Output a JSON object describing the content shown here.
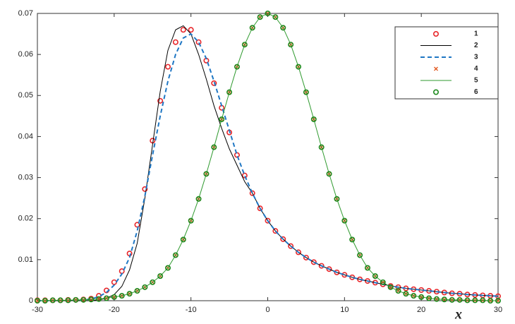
{
  "chart_data": {
    "type": "line",
    "x": [
      -30,
      -29,
      -28,
      -27,
      -26,
      -25,
      -24,
      -23,
      -22,
      -21,
      -20,
      -19,
      -18,
      -17,
      -16,
      -15,
      -14,
      -13,
      -12,
      -11,
      -10,
      -9,
      -8,
      -7,
      -6,
      -5,
      -4,
      -3,
      -2,
      -1,
      0,
      1,
      2,
      3,
      4,
      5,
      6,
      7,
      8,
      9,
      10,
      11,
      12,
      13,
      14,
      15,
      16,
      17,
      18,
      19,
      20,
      21,
      22,
      23,
      24,
      25,
      26,
      27,
      28,
      29,
      30
    ],
    "xlim": [
      -30,
      30
    ],
    "xticks": [
      -30,
      -20,
      -10,
      0,
      10,
      20,
      30
    ],
    "ylim": [
      0,
      0.07
    ],
    "yticks": [
      0,
      0.01,
      0.02,
      0.03,
      0.04,
      0.05,
      0.06,
      0.07
    ],
    "xlabel": "x",
    "legend": "upper right",
    "series": [
      {
        "name": "1",
        "color": "#e8262a",
        "marker": "o",
        "line": "none",
        "values": [
          0.0001,
          0.0001,
          0.0001,
          0.0001,
          0.0002,
          0.0002,
          0.0003,
          0.0005,
          0.0012,
          0.0025,
          0.0045,
          0.0072,
          0.0115,
          0.0185,
          0.0272,
          0.039,
          0.0487,
          0.057,
          0.063,
          0.066,
          0.066,
          0.063,
          0.0585,
          0.053,
          0.047,
          0.041,
          0.0355,
          0.0305,
          0.0262,
          0.0225,
          0.0195,
          0.017,
          0.015,
          0.0133,
          0.0118,
          0.0105,
          0.0094,
          0.0085,
          0.0077,
          0.0069,
          0.0063,
          0.0057,
          0.0052,
          0.0048,
          0.0044,
          0.004,
          0.0036,
          0.0033,
          0.003,
          0.0028,
          0.0026,
          0.0024,
          0.0022,
          0.002,
          0.0018,
          0.0017,
          0.0015,
          0.0014,
          0.0013,
          0.0012,
          0.0011
        ]
      },
      {
        "name": "2",
        "color": "#000000",
        "marker": "none",
        "line": "solid",
        "values": [
          0,
          0,
          0,
          0,
          0,
          0,
          0,
          0,
          0.0002,
          0.0006,
          0.0015,
          0.0035,
          0.0075,
          0.014,
          0.025,
          0.038,
          0.051,
          0.061,
          0.066,
          0.067,
          0.065,
          0.06,
          0.054,
          0.0475,
          0.042,
          0.037,
          0.033,
          0.029,
          0.0262,
          0.0225,
          0.0195,
          0.017,
          0.015,
          0.0133,
          0.0118,
          0.0105,
          0.0094,
          0.0085,
          0.0077,
          0.0069,
          0.0063,
          0.0057,
          0.0052,
          0.0048,
          0.0044,
          0.004,
          0.0036,
          0.0033,
          0.003,
          0.0028,
          0.0026,
          0.0024,
          0.0022,
          0.002,
          0.0018,
          0.0017,
          0.0015,
          0.0014,
          0.0013,
          0.0012,
          0.0011
        ]
      },
      {
        "name": "3",
        "color": "#1f77c4",
        "marker": "none",
        "line": "dashed",
        "values": [
          0,
          0,
          0,
          0,
          0.0001,
          0.0001,
          0.0002,
          0.0004,
          0.001,
          0.002,
          0.0038,
          0.0065,
          0.0105,
          0.017,
          0.0255,
          0.0355,
          0.045,
          0.0535,
          0.06,
          0.064,
          0.065,
          0.063,
          0.059,
          0.0535,
          0.0475,
          0.0415,
          0.0355,
          0.0305,
          0.0262,
          0.0225,
          0.0195,
          0.017,
          0.015,
          0.0133,
          0.0118,
          0.0105,
          0.0094,
          0.0085,
          0.0077,
          0.0069,
          0.0063,
          0.0057,
          0.0052,
          0.0048,
          0.0044,
          0.004,
          0.0036,
          0.0033,
          0.003,
          0.0028,
          0.0026,
          0.0024,
          0.0022,
          0.002,
          0.0018,
          0.0017,
          0.0015,
          0.0014,
          0.0013,
          0.0012,
          0.0011
        ]
      },
      {
        "name": "4",
        "color": "#e2551b",
        "marker": "x",
        "line": "none",
        "values": [
          0,
          0,
          0.0001,
          0.0001,
          0.0001,
          0.0002,
          0.0002,
          0.0003,
          0.0004,
          0.0006,
          0.0009,
          0.0012,
          0.0017,
          0.0024,
          0.0033,
          0.0045,
          0.006,
          0.008,
          0.0111,
          0.0149,
          0.0195,
          0.0248,
          0.0309,
          0.0374,
          0.0442,
          0.0508,
          0.057,
          0.0624,
          0.0665,
          0.0691,
          0.07,
          0.0691,
          0.0665,
          0.0624,
          0.057,
          0.0508,
          0.0442,
          0.0374,
          0.0309,
          0.0248,
          0.0195,
          0.0149,
          0.0111,
          0.008,
          0.006,
          0.0045,
          0.0033,
          0.0024,
          0.0017,
          0.0012,
          0.0009,
          0.0006,
          0.0004,
          0.0003,
          0.0002,
          0.0002,
          0.0001,
          0.0001,
          0.0001,
          0,
          0
        ]
      },
      {
        "name": "5",
        "color": "#2f9a2f",
        "marker": "none",
        "line": "solid",
        "values": [
          0,
          0,
          0.0001,
          0.0001,
          0.0001,
          0.0002,
          0.0002,
          0.0003,
          0.0004,
          0.0006,
          0.0009,
          0.0012,
          0.0017,
          0.0024,
          0.0033,
          0.0045,
          0.006,
          0.008,
          0.0111,
          0.0149,
          0.0195,
          0.0248,
          0.0309,
          0.0374,
          0.0442,
          0.0508,
          0.057,
          0.0624,
          0.0665,
          0.0691,
          0.07,
          0.0691,
          0.0665,
          0.0624,
          0.057,
          0.0508,
          0.0442,
          0.0374,
          0.0309,
          0.0248,
          0.0195,
          0.0149,
          0.0111,
          0.008,
          0.006,
          0.0045,
          0.0033,
          0.0024,
          0.0017,
          0.0012,
          0.0009,
          0.0006,
          0.0004,
          0.0003,
          0.0002,
          0.0002,
          0.0001,
          0.0001,
          0.0001,
          0,
          0
        ]
      },
      {
        "name": "6",
        "color": "#1d8a1d",
        "marker": "o",
        "line": "none",
        "values": [
          0,
          0,
          0.0001,
          0.0001,
          0.0001,
          0.0002,
          0.0002,
          0.0003,
          0.0004,
          0.0006,
          0.0009,
          0.0012,
          0.0017,
          0.0024,
          0.0033,
          0.0045,
          0.006,
          0.008,
          0.0111,
          0.0149,
          0.0195,
          0.0248,
          0.0309,
          0.0374,
          0.0442,
          0.0508,
          0.057,
          0.0624,
          0.0665,
          0.0691,
          0.07,
          0.0691,
          0.0665,
          0.0624,
          0.057,
          0.0508,
          0.0442,
          0.0374,
          0.0309,
          0.0248,
          0.0195,
          0.0149,
          0.0111,
          0.008,
          0.006,
          0.0045,
          0.0033,
          0.0024,
          0.0017,
          0.0012,
          0.0009,
          0.0006,
          0.0004,
          0.0003,
          0.0002,
          0.0002,
          0.0001,
          0.0001,
          0.0001,
          0,
          0
        ]
      }
    ]
  }
}
